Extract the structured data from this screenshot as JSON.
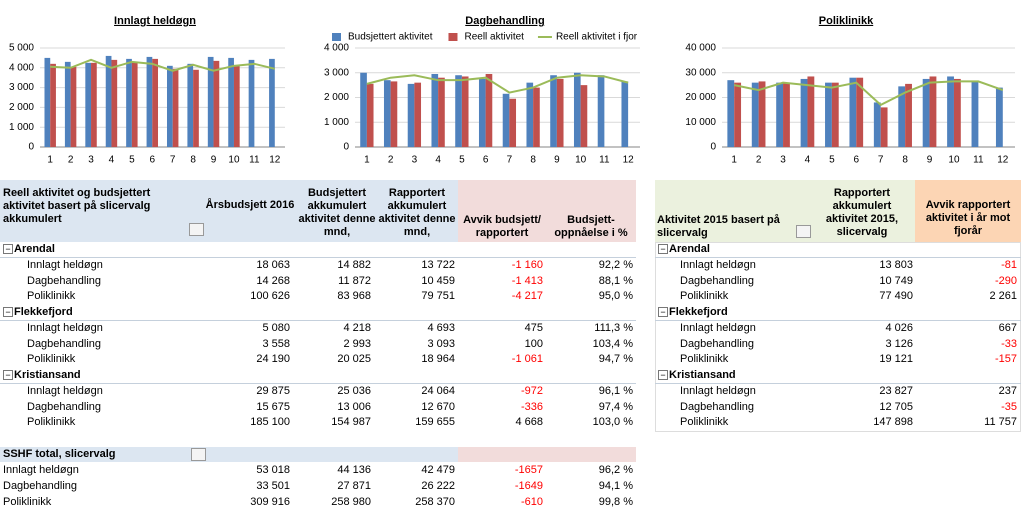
{
  "chart_data": [
    {
      "type": "bar",
      "title": "Innlagt heldøgn",
      "categories": [
        "1",
        "2",
        "3",
        "4",
        "5",
        "6",
        "7",
        "8",
        "9",
        "10",
        "11",
        "12"
      ],
      "ylim": [
        0,
        5000
      ],
      "yticks": [
        0,
        {
          "value": 1000,
          "label": "1 000"
        },
        {
          "value": 2000,
          "label": "2 000"
        },
        {
          "value": 3000,
          "label": "3 000"
        },
        {
          "value": 4000,
          "label": "4 000"
        },
        {
          "value": 5000,
          "label": "5 000"
        }
      ],
      "grid": true,
      "series": [
        {
          "type": "bar",
          "color": "#4f81bd",
          "values": [
            4500,
            4300,
            4250,
            4600,
            4450,
            4550,
            4100,
            4200,
            4550,
            4500,
            4400,
            4450
          ]
        },
        {
          "type": "bar",
          "color": "#c0504d",
          "values": [
            4200,
            4050,
            4250,
            4400,
            4300,
            4450,
            3950,
            3900,
            4350,
            4100,
            null,
            null
          ]
        },
        {
          "type": "line",
          "color": "#9bbb59",
          "values": [
            4050,
            4000,
            4400,
            4000,
            4300,
            4200,
            3850,
            4150,
            3850,
            4100,
            4200,
            3950
          ]
        }
      ]
    },
    {
      "type": "bar",
      "title": "Dagbehandling",
      "categories": [
        "1",
        "2",
        "3",
        "4",
        "5",
        "6",
        "7",
        "8",
        "9",
        "10",
        "11",
        "12"
      ],
      "ylim": [
        0,
        4000
      ],
      "yticks": [
        0,
        {
          "value": 1000,
          "label": "1 000"
        },
        {
          "value": 2000,
          "label": "2 000"
        },
        {
          "value": 3000,
          "label": "3 000"
        },
        {
          "value": 4000,
          "label": "4 000"
        }
      ],
      "grid": true,
      "legend": "top",
      "series": [
        {
          "name": "Budsjettert aktivitet",
          "type": "bar",
          "color": "#4f81bd",
          "values": [
            3000,
            2700,
            2550,
            2950,
            2900,
            2750,
            2150,
            2600,
            2900,
            3000,
            2900,
            2650
          ]
        },
        {
          "name": "Reell aktivitet",
          "type": "bar",
          "color": "#c0504d",
          "values": [
            2550,
            2650,
            2600,
            2800,
            2850,
            2950,
            1950,
            2400,
            2750,
            2500,
            null,
            null
          ]
        },
        {
          "name": "Reell aktivitet i fjor",
          "type": "line",
          "color": "#9bbb59",
          "values": [
            2550,
            2800,
            2900,
            2700,
            2700,
            2800,
            2200,
            2400,
            2800,
            2900,
            2850,
            2600
          ]
        }
      ]
    },
    {
      "type": "bar",
      "title": "Poliklinikk",
      "categories": [
        "1",
        "2",
        "3",
        "4",
        "5",
        "6",
        "7",
        "8",
        "9",
        "10",
        "11",
        "12"
      ],
      "ylim": [
        0,
        40000
      ],
      "yticks": [
        0,
        {
          "value": 10000,
          "label": "10 000"
        },
        {
          "value": 20000,
          "label": "20 000"
        },
        {
          "value": 30000,
          "label": "30 000"
        },
        {
          "value": 40000,
          "label": "40 000"
        }
      ],
      "grid": true,
      "series": [
        {
          "type": "bar",
          "color": "#4f81bd",
          "values": [
            27000,
            26000,
            26000,
            27500,
            26000,
            28000,
            18000,
            24500,
            27500,
            28500,
            26500,
            24000
          ]
        },
        {
          "type": "bar",
          "color": "#c0504d",
          "values": [
            26000,
            26500,
            26000,
            28500,
            26000,
            28000,
            16000,
            25500,
            28500,
            27500,
            null,
            null
          ]
        },
        {
          "type": "line",
          "color": "#9bbb59",
          "values": [
            25000,
            23000,
            26000,
            25000,
            24000,
            26000,
            17000,
            22000,
            26000,
            26500,
            26500,
            23000
          ]
        }
      ]
    }
  ],
  "table1": {
    "headers": [
      "Reell aktivitet og budsjettert aktivitet basert på slicervalg akkumulert",
      "Årsbudsjett 2016",
      "Budsjettert akkumulert aktivitet denne mnd,",
      "Rapportert akkumulert aktivitet denne mnd,",
      "Avvik budsjett/ rapportert",
      "Budsjett-oppnåelse i %"
    ],
    "groups": [
      {
        "name": "Arendal",
        "rows": [
          [
            "Innlagt heldøgn",
            "18 063",
            "14 882",
            "13 722",
            "-1 160",
            "92,2 %"
          ],
          [
            "Dagbehandling",
            "14 268",
            "11 872",
            "10 459",
            "-1 413",
            "88,1 %"
          ],
          [
            "Poliklinikk",
            "100 626",
            "83 968",
            "79 751",
            "-4 217",
            "95,0 %"
          ]
        ]
      },
      {
        "name": "Flekkefjord",
        "rows": [
          [
            "Innlagt heldøgn",
            "5 080",
            "4 218",
            "4 693",
            "475",
            "111,3 %"
          ],
          [
            "Dagbehandling",
            "3 558",
            "2 993",
            "3 093",
            "100",
            "103,4 %"
          ],
          [
            "Poliklinikk",
            "24 190",
            "20 025",
            "18 964",
            "-1 061",
            "94,7 %"
          ]
        ]
      },
      {
        "name": "Kristiansand",
        "rows": [
          [
            "Innlagt heldøgn",
            "29 875",
            "25 036",
            "24 064",
            "-972",
            "96,1 %"
          ],
          [
            "Dagbehandling",
            "15 675",
            "13 006",
            "12 670",
            "-336",
            "97,4 %"
          ],
          [
            "Poliklinikk",
            "185 100",
            "154 987",
            "159 655",
            "4 668",
            "103,0 %"
          ]
        ]
      }
    ],
    "total": {
      "title": "SSHF total, slicervalg",
      "rows": [
        [
          "Innlagt heldøgn",
          "53 018",
          "44 136",
          "42 479",
          "-1657",
          "96,2 %"
        ],
        [
          "Dagbehandling",
          "33 501",
          "27 871",
          "26 222",
          "-1649",
          "94,1 %"
        ],
        [
          "Poliklinikk",
          "309 916",
          "258 980",
          "258 370",
          "-610",
          "99,8 %"
        ]
      ]
    }
  },
  "table2": {
    "headers": [
      "Aktivitet 2015 basert på slicervalg",
      "Rapportert akkumulert aktivitet 2015, slicervalg",
      "Avvik rapportert aktivitet i år mot fjorår"
    ],
    "groups": [
      {
        "name": "Arendal",
        "rows": [
          [
            "Innlagt heldøgn",
            "13 803",
            "-81"
          ],
          [
            "Dagbehandling",
            "10 749",
            "-290"
          ],
          [
            "Poliklinikk",
            "77 490",
            "2 261"
          ]
        ]
      },
      {
        "name": "Flekkefjord",
        "rows": [
          [
            "Innlagt heldøgn",
            "4 026",
            "667"
          ],
          [
            "Dagbehandling",
            "3 126",
            "-33"
          ],
          [
            "Poliklinikk",
            "19 121",
            "-157"
          ]
        ]
      },
      {
        "name": "Kristiansand",
        "rows": [
          [
            "Innlagt heldøgn",
            "23 827",
            "237"
          ],
          [
            "Dagbehandling",
            "12 705",
            "-35"
          ],
          [
            "Poliklinikk",
            "147 898",
            "11 757"
          ]
        ]
      }
    ]
  }
}
